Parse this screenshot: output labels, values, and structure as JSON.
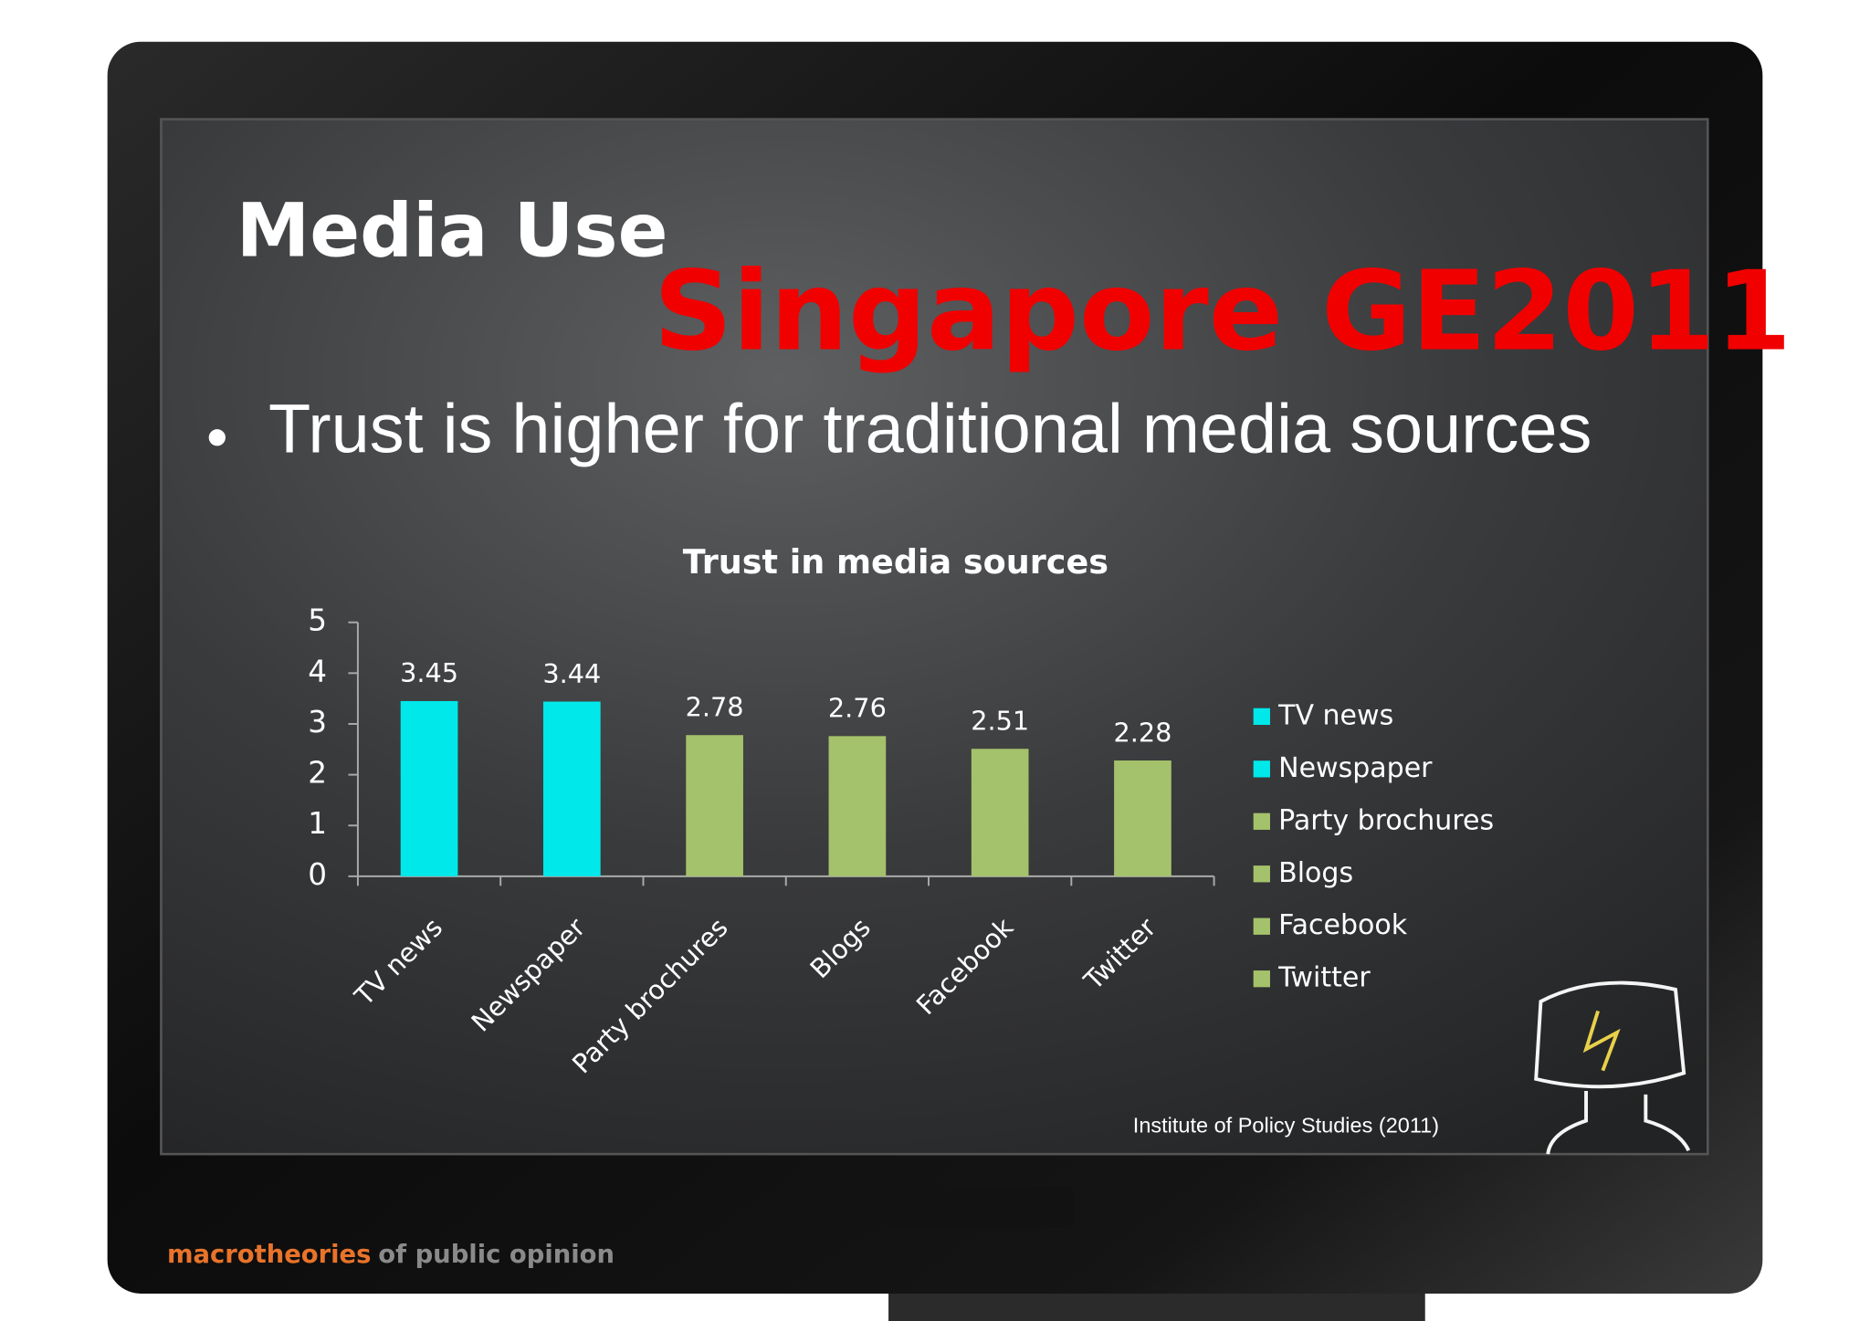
{
  "slide": {
    "title": "Media Use",
    "headline": "Singapore GE2011",
    "bullet": "Trust is higher for traditional media sources",
    "source": "Institute of Policy Studies (2011)",
    "footer_brand": "macrotheories",
    "footer_rest": "of public opinion"
  },
  "chart_data": {
    "type": "bar",
    "title": "Trust in media sources",
    "categories": [
      "TV news",
      "Newspaper",
      "Party brochures",
      "Blogs",
      "Facebook",
      "Twitter"
    ],
    "values": [
      3.45,
      3.44,
      2.78,
      2.76,
      2.51,
      2.28
    ],
    "colors": [
      "#00e8ea",
      "#00e8ea",
      "#a4c26b",
      "#a4c26b",
      "#a4c26b",
      "#a4c26b"
    ],
    "ylim": [
      0,
      5
    ],
    "yticks": [
      0,
      1,
      2,
      3,
      4,
      5
    ],
    "grid": false,
    "legend": "right"
  }
}
